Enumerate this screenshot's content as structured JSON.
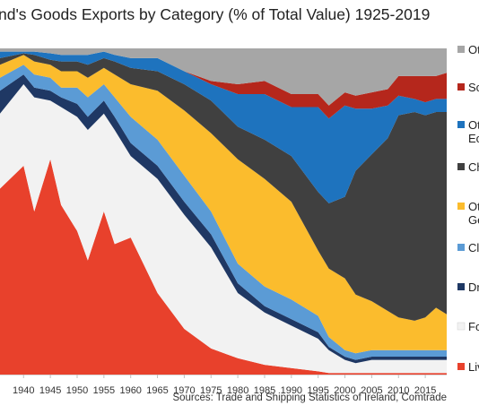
{
  "chart_data": {
    "type": "area",
    "stacked": true,
    "percent": true,
    "title": "nd's Goods Exports by Category (% of Total Value) 1925-2019",
    "source": "Sources: Trade and Shipping Statistics of Ireland, Comtrade",
    "x_ticks": [
      "1940",
      "1945",
      "1950",
      "1955",
      "1960",
      "1965",
      "1970",
      "1975",
      "1980",
      "1985",
      "1990",
      "1995",
      "2000",
      "2005",
      "2010",
      "2015"
    ],
    "xlim": [
      1935.6,
      2019
    ],
    "ylim": [
      0,
      100
    ],
    "legend_position": "right",
    "x": [
      1935.6,
      1940,
      1942,
      1945,
      1947,
      1950,
      1952,
      1955,
      1957,
      1960,
      1965,
      1970,
      1975,
      1980,
      1985,
      1990,
      1995,
      1997,
      2000,
      2002,
      2005,
      2008,
      2010,
      2013,
      2015,
      2017,
      2019
    ],
    "series": [
      {
        "name": "Liv",
        "color": "#e8412c",
        "values": [
          57,
          64,
          50,
          66,
          52,
          44,
          35,
          50,
          40,
          42,
          25,
          14,
          8,
          5,
          3,
          2,
          1,
          0.5,
          0.5,
          0.5,
          0.5,
          0.5,
          0.5,
          0.5,
          0.5,
          0.5,
          0.5
        ]
      },
      {
        "name": "Fo",
        "color": "#f2f2f2",
        "values": [
          23,
          25,
          35,
          18,
          30,
          35,
          40,
          30,
          35,
          25,
          35,
          35,
          31,
          20,
          16,
          13,
          10,
          7,
          4,
          3,
          4,
          4,
          4,
          4,
          4,
          4,
          4
        ]
      },
      {
        "name": "Dr",
        "color": "#1f3864",
        "values": [
          7,
          3,
          3,
          3,
          3,
          4,
          4,
          4,
          4,
          4,
          4,
          4,
          4,
          3,
          2,
          2,
          2,
          1,
          1,
          1,
          1,
          1,
          1,
          1,
          1,
          1,
          1
        ]
      },
      {
        "name": "Cl",
        "color": "#5b9bd5",
        "values": [
          4,
          3,
          4,
          4,
          3,
          5,
          6,
          5,
          6,
          8,
          8,
          8,
          7,
          6,
          6,
          6,
          5,
          3,
          2,
          2,
          2,
          2,
          2,
          2,
          2,
          2,
          2
        ]
      },
      {
        "name": "Ot Ge",
        "color": "#fbbc2d",
        "values": [
          4,
          3,
          4,
          4,
          5,
          5,
          6,
          5,
          7,
          10,
          15,
          20,
          24,
          32,
          33,
          30,
          20,
          21,
          22,
          18,
          15,
          12,
          10,
          9,
          10,
          13,
          11
        ]
      },
      {
        "name": "Ch",
        "color": "#404040",
        "values": [
          2,
          0.5,
          2,
          1.5,
          3,
          3,
          4,
          3,
          4,
          5,
          6,
          8,
          10,
          10,
          12,
          14,
          18,
          20,
          25,
          38,
          45,
          53,
          62,
          64,
          62,
          60,
          62
        ]
      },
      {
        "name": "Ot Ec",
        "color": "#1e73be",
        "values": [
          2,
          0.5,
          1,
          2,
          2,
          2,
          3,
          2,
          2,
          3,
          4,
          4,
          5,
          10,
          14,
          15,
          26,
          26,
          28,
          19,
          14,
          10,
          6,
          4,
          4,
          4,
          4
        ]
      },
      {
        "name": "Sc",
        "color": "#b5271c",
        "values": [
          0,
          0,
          0,
          0,
          0,
          0,
          0,
          0,
          0,
          0,
          0,
          0,
          1,
          3,
          4,
          4,
          4,
          4,
          4,
          4,
          5,
          5,
          6,
          7,
          8,
          7,
          8
        ]
      },
      {
        "name": "Ot",
        "color": "#a6a6a6",
        "values": [
          1,
          1,
          1,
          1.5,
          2,
          2,
          2,
          1,
          2,
          3,
          3,
          7,
          10,
          11,
          10,
          14,
          14,
          17.5,
          13.5,
          14.5,
          13.5,
          12.5,
          8.5,
          8.5,
          8.5,
          8.5,
          7.5
        ]
      }
    ],
    "legend": [
      {
        "label": "Ot",
        "color": "#a6a6a6"
      },
      {
        "label": "Sc",
        "color": "#b5271c"
      },
      {
        "label": "Ot",
        "label2": "Ec",
        "color": "#1e73be"
      },
      {
        "label": "Ch",
        "color": "#404040"
      },
      {
        "label": "Ot",
        "label2": "Ge",
        "color": "#fbbc2d"
      },
      {
        "label": "Cl",
        "color": "#5b9bd5"
      },
      {
        "label": "Dr",
        "color": "#1f3864"
      },
      {
        "label": "Fo",
        "color": "#f2f2f2"
      },
      {
        "label": "Liv",
        "color": "#e8412c"
      }
    ]
  }
}
